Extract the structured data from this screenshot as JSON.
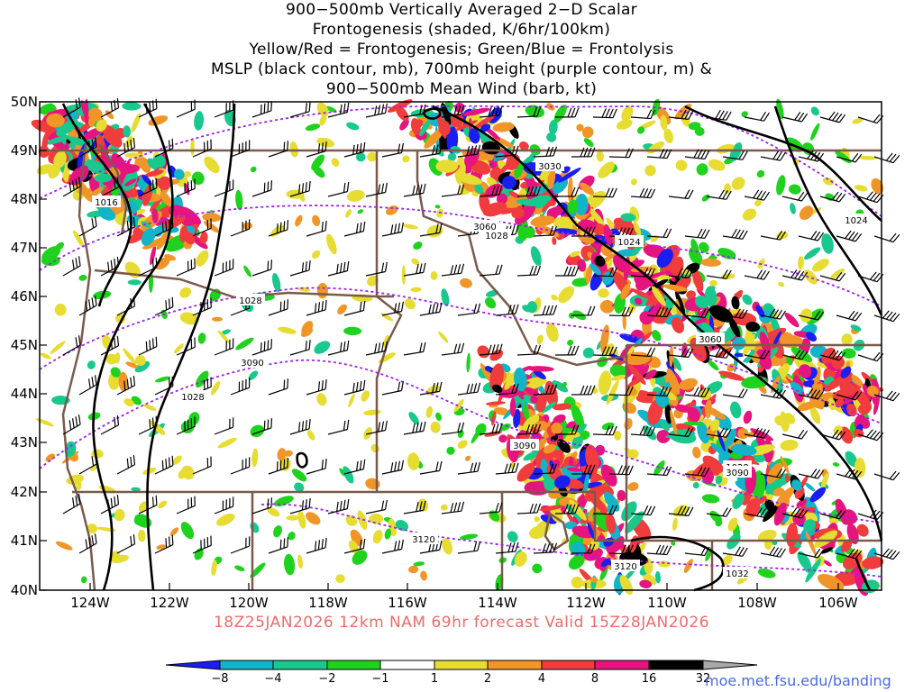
{
  "title": {
    "line1": "900−500mb Vertically Averaged 2−D Scalar",
    "line2": "Frontogenesis (shaded, K/6hr/100km)",
    "line3": "Yellow/Red = Frontogenesis;  Green/Blue = Frontolysis",
    "line4": "MSLP (black contour, mb), 700mb height (purple contour, m) &",
    "line5": "900−500mb Mean Wind (barb, kt)"
  },
  "latitude_labels": [
    "50N",
    "49N",
    "48N",
    "47N",
    "46N",
    "45N",
    "44N",
    "43N",
    "42N",
    "41N",
    "40N"
  ],
  "longitude_labels": [
    "124W",
    "122W",
    "120W",
    "118W",
    "116W",
    "114W",
    "112W",
    "110W",
    "108W",
    "106W"
  ],
  "valid_time": "18Z25JAN2026 12km NAM 69hr forecast Valid 15Z28JAN2026",
  "colorbar": {
    "labels": [
      "−8",
      "−4",
      "−2",
      "−1",
      "1",
      "2",
      "4",
      "8",
      "16",
      "32"
    ],
    "colors": [
      "#1a1ef0",
      "#12b4c8",
      "#18c88c",
      "#1ed21e",
      "#ffffff",
      "#e6dc32",
      "#f09628",
      "#f03c3c",
      "#e6147e",
      "#000000",
      "#a8a8a8"
    ]
  },
  "mslp_contour_labels": [
    "1016",
    "1028",
    "1028",
    "1028",
    "1024",
    "1024",
    "1028",
    "1032"
  ],
  "height_contour_labels": [
    "3030",
    "3060",
    "3060",
    "3090",
    "3090",
    "3090",
    "3120",
    "3120"
  ],
  "credit": "moe.met.fsu.edu/banding",
  "colors": {
    "mslp_contour": "#000000",
    "height_contour": "#a020f0",
    "borders": "#7a5a4a",
    "valid_text": "#ee6b6b",
    "credit_text": "#4a6be0"
  }
}
